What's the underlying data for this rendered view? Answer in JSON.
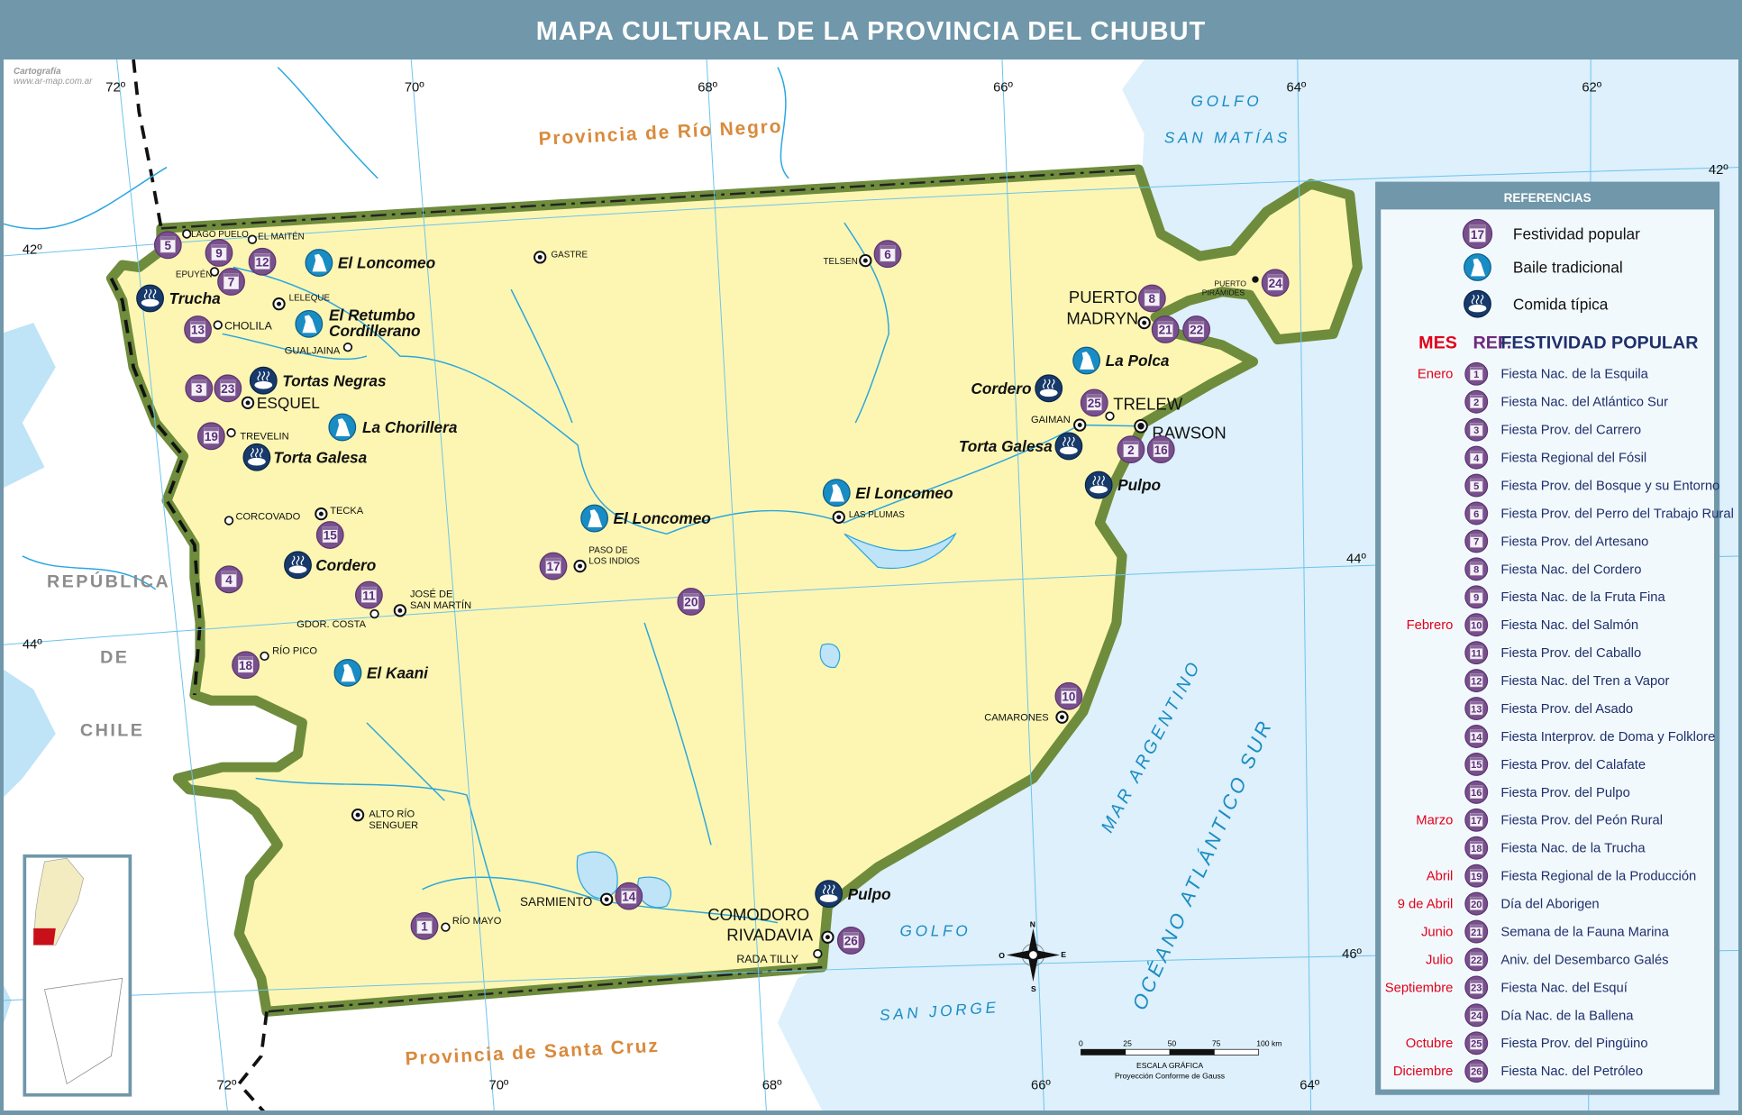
{
  "title": "MAPA CULTURAL DE LA PROVINCIA DEL CHUBUT",
  "watermark": {
    "line1": "Cartografía",
    "line2": "www.ar-map.com.ar"
  },
  "graticule": {
    "top_longitudes": [
      "72º",
      "70º",
      "68º",
      "66º",
      "64º",
      "62º"
    ],
    "bottom_longitudes": [
      "72º",
      "70º",
      "68º",
      "66º",
      "64º"
    ],
    "left_latitudes": [
      "42º",
      "44º"
    ],
    "right_latitudes": [
      "42º",
      "44º",
      "46º"
    ]
  },
  "regions": {
    "rio_negro": "Provincia de Río Negro",
    "santa_cruz": "Provincia de Santa Cruz",
    "chile": [
      "REPÚBLICA",
      "DE",
      "CHILE"
    ],
    "golfo_san_matias": [
      "GOLFO",
      "SAN MATÍAS"
    ],
    "golfo_san_jorge": [
      "GOLFO",
      "SAN JORGE"
    ],
    "mar_argentino": "MAR ARGENTINO",
    "oceano": "OCÉANO ATLÁNTICO SUR"
  },
  "colors": {
    "province": "#fdf6b2",
    "border": "#6e8c3c",
    "sea": "#ddf0fb",
    "water": "#2aa6e0",
    "festivity": "#7a4f8e",
    "dance": "#1a8cc4",
    "food": "#173a6b",
    "month": "#e2001a",
    "ref_header": "#6b2a7c",
    "fest_header": "#1f2f6b"
  },
  "legend": {
    "header": "REFERENCIAS",
    "symbols": [
      {
        "icon": "calendar-icon",
        "sample": "17",
        "label": "Festividad popular"
      },
      {
        "icon": "dancers-icon",
        "label": "Baile tradicional"
      },
      {
        "icon": "food-pot-icon",
        "label": "Comida típica"
      }
    ],
    "table_header": {
      "mes": "MES",
      "ref": "REF.",
      "fest": "FESTIVIDAD POPULAR"
    },
    "rows": [
      {
        "month": "Enero",
        "ref": "1",
        "name": "Fiesta Nac. de la Esquila"
      },
      {
        "month": "",
        "ref": "2",
        "name": "Fiesta Nac. del Atlántico Sur"
      },
      {
        "month": "",
        "ref": "3",
        "name": "Fiesta Prov. del Carrero"
      },
      {
        "month": "",
        "ref": "4",
        "name": "Fiesta Regional del Fósil"
      },
      {
        "month": "",
        "ref": "5",
        "name": "Fiesta Prov. del Bosque y su Entorno"
      },
      {
        "month": "",
        "ref": "6",
        "name": "Fiesta Prov. del Perro del Trabajo Rural"
      },
      {
        "month": "",
        "ref": "7",
        "name": "Fiesta Prov. del Artesano"
      },
      {
        "month": "",
        "ref": "8",
        "name": "Fiesta Nac. del Cordero"
      },
      {
        "month": "",
        "ref": "9",
        "name": "Fiesta Nac. de la Fruta Fina"
      },
      {
        "month": "Febrero",
        "ref": "10",
        "name": "Fiesta Nac. del Salmón"
      },
      {
        "month": "",
        "ref": "11",
        "name": "Fiesta Prov. del Caballo"
      },
      {
        "month": "",
        "ref": "12",
        "name": "Fiesta Nac. del Tren a Vapor"
      },
      {
        "month": "",
        "ref": "13",
        "name": "Fiesta Prov. del Asado"
      },
      {
        "month": "",
        "ref": "14",
        "name": "Fiesta Interprov. de Doma y Folklore"
      },
      {
        "month": "",
        "ref": "15",
        "name": "Fiesta Prov. del Calafate"
      },
      {
        "month": "",
        "ref": "16",
        "name": "Fiesta Prov. del Pulpo"
      },
      {
        "month": "Marzo",
        "ref": "17",
        "name": "Fiesta Prov. del Peón Rural"
      },
      {
        "month": "",
        "ref": "18",
        "name": "Fiesta Nac. de la Trucha"
      },
      {
        "month": "Abril",
        "ref": "19",
        "name": "Fiesta Regional de la Producción"
      },
      {
        "month": "9 de Abril",
        "ref": "20",
        "name": "Día del Aborigen"
      },
      {
        "month": "Junio",
        "ref": "21",
        "name": "Semana de la Fauna Marina"
      },
      {
        "month": "Julio",
        "ref": "22",
        "name": "Aniv. del Desembarco Galés"
      },
      {
        "month": "Septiembre",
        "ref": "23",
        "name": "Fiesta Nac. del Esquí"
      },
      {
        "month": "",
        "ref": "24",
        "name": "Día Nac. de la Ballena"
      },
      {
        "month": "Octubre",
        "ref": "25",
        "name": "Fiesta Prov. del Pingüino"
      },
      {
        "month": "Diciembre",
        "ref": "26",
        "name": "Fiesta Nac. del Petróleo"
      }
    ]
  },
  "festivity_markers": [
    "5",
    "9",
    "12",
    "7",
    "13",
    "3",
    "23",
    "19",
    "15",
    "4",
    "11",
    "18",
    "1",
    "14",
    "17",
    "20",
    "6",
    "8",
    "21",
    "22",
    "24",
    "25",
    "2",
    "16",
    "10",
    "26"
  ],
  "culture": [
    {
      "type": "dance",
      "label": "El Loncomeo"
    },
    {
      "type": "dance",
      "label": "El Retumbo"
    },
    {
      "type": "dance",
      "label": "La Chorillera"
    },
    {
      "type": "dance",
      "label": "El Loncomeo"
    },
    {
      "type": "dance",
      "label": "El Loncomeo"
    },
    {
      "type": "dance",
      "label": "La Polca"
    },
    {
      "type": "dance",
      "label": "El Kaani"
    },
    {
      "type": "food",
      "label": "Trucha"
    },
    {
      "type": "food",
      "label": "Tortas Negras"
    },
    {
      "type": "food",
      "label": "Torta Galesa"
    },
    {
      "type": "food",
      "label": "Cordero"
    },
    {
      "type": "food",
      "label": "Cordero"
    },
    {
      "type": "food",
      "label": "Torta Galesa"
    },
    {
      "type": "food",
      "label": "Pulpo"
    },
    {
      "type": "food",
      "label": "Pulpo"
    }
  ],
  "culture_extra": {
    "retumbo_line2": "Cordillerano"
  },
  "towns": [
    {
      "name": "LAGO PUELO",
      "kind": "small"
    },
    {
      "name": "EL MAITÉN",
      "kind": "small"
    },
    {
      "name": "EPUYÉN",
      "kind": "small"
    },
    {
      "name": "LELEQUE",
      "kind": "target"
    },
    {
      "name": "CHOLILA",
      "kind": "small"
    },
    {
      "name": "GUALJAINA",
      "kind": "small"
    },
    {
      "name": "ESQUEL",
      "kind": "target"
    },
    {
      "name": "TREVELIN",
      "kind": "small"
    },
    {
      "name": "CORCOVADO",
      "kind": "small"
    },
    {
      "name": "TECKA",
      "kind": "target"
    },
    {
      "name": "JOSÉ DE",
      "kind": "target"
    },
    {
      "name": "GDOR. COSTA",
      "kind": "small"
    },
    {
      "name": "RÍO PICO",
      "kind": "small"
    },
    {
      "name": "ALTO RÍO",
      "kind": "target"
    },
    {
      "name": "RÍO MAYO",
      "kind": "small"
    },
    {
      "name": "SARMIENTO",
      "kind": "target"
    },
    {
      "name": "COMODORO",
      "kind": "target"
    },
    {
      "name": "RADA TILLY",
      "kind": "small"
    },
    {
      "name": "CAMARONES",
      "kind": "target"
    },
    {
      "name": "LAS PLUMAS",
      "kind": "target"
    },
    {
      "name": "PASO DE",
      "kind": "target"
    },
    {
      "name": "GASTRE",
      "kind": "target"
    },
    {
      "name": "TELSEN",
      "kind": "target"
    },
    {
      "name": "PUERTO",
      "kind": "target"
    },
    {
      "name": "PUERTO",
      "kind": "dot"
    },
    {
      "name": "TRELEW",
      "kind": "small"
    },
    {
      "name": "GAIMAN",
      "kind": "target"
    },
    {
      "name": "RAWSON",
      "kind": "capital"
    }
  ],
  "town_second_lines": [
    "SAN MARTÍN",
    "SENGUER",
    "RIVADAVIA",
    "LOS INDIOS",
    "MADRYN",
    "PIRÁMIDES"
  ],
  "compass": {
    "n": "N",
    "s": "S",
    "e": "E",
    "o": "O"
  },
  "scale": {
    "ticks": [
      "0",
      "25",
      "50",
      "75",
      "100 km"
    ],
    "title": "ESCALA GRÁFICA",
    "projection": "Proyección Conforme de Gauss"
  }
}
